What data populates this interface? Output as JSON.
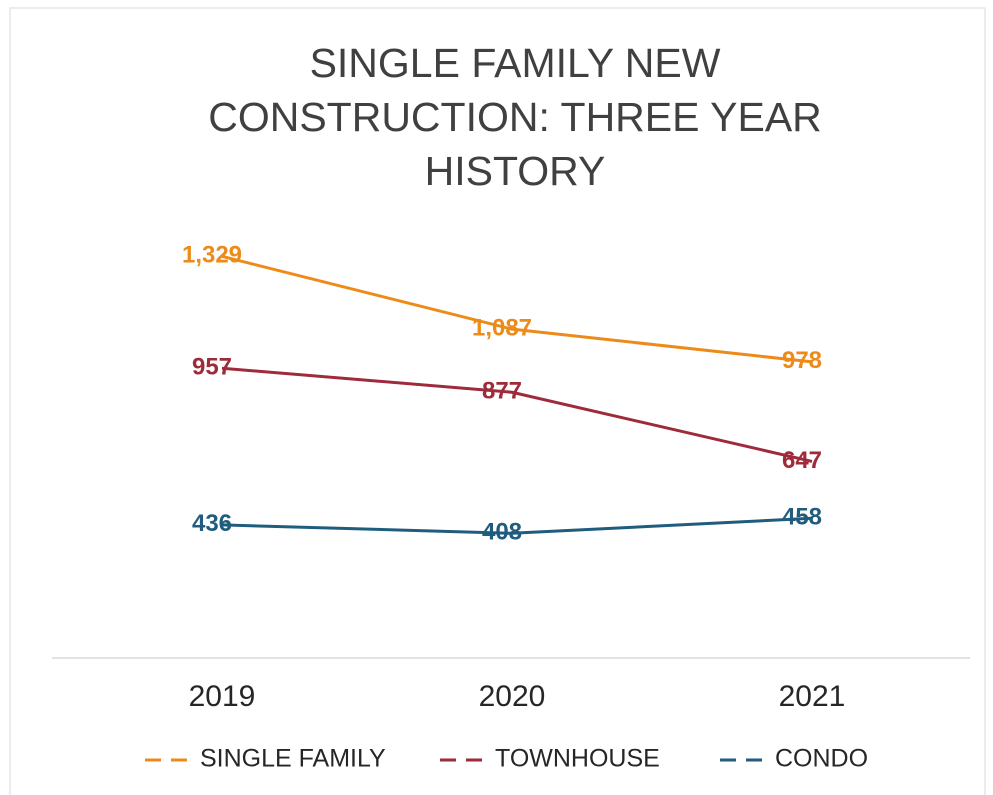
{
  "chart_data": {
    "type": "line",
    "title": "SINGLE FAMILY NEW CONSTRUCTION: THREE YEAR HISTORY",
    "categories": [
      "2019",
      "2020",
      "2021"
    ],
    "series": [
      {
        "name": "SINGLE FAMILY",
        "color": "#ED8B1A",
        "values": [
          1329,
          1087,
          978
        ],
        "value_labels": [
          "1,329",
          "1,087",
          "978"
        ]
      },
      {
        "name": "TOWNHOUSE",
        "color": "#9E2A3A",
        "values": [
          957,
          877,
          647
        ],
        "value_labels": [
          "957",
          "877",
          "647"
        ]
      },
      {
        "name": "CONDO",
        "color": "#1F5C7E",
        "values": [
          436,
          408,
          458
        ],
        "value_labels": [
          "436",
          "408",
          "458"
        ]
      }
    ],
    "ylim": [
      0,
      1400
    ],
    "grid": false,
    "legend": "bottom"
  }
}
